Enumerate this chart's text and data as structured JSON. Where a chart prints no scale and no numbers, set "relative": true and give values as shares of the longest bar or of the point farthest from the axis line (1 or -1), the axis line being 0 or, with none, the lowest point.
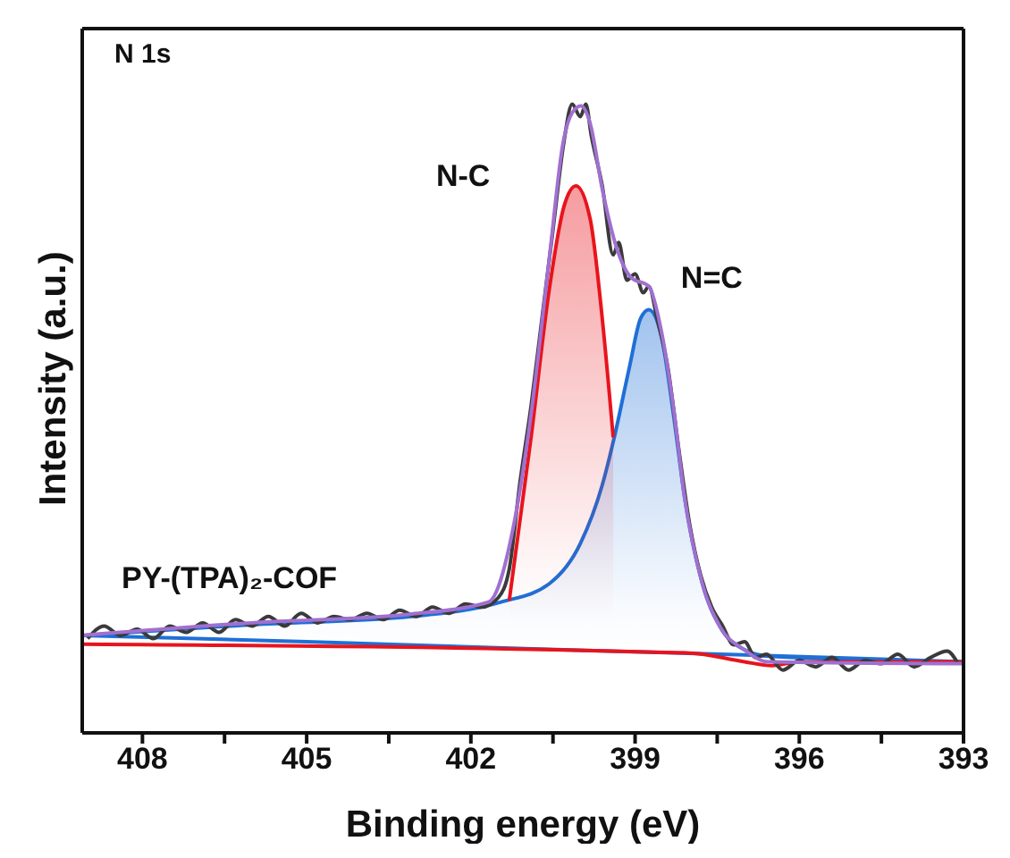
{
  "chart_data": {
    "type": "line",
    "relative": true,
    "xlabel": "Binding energy (eV)",
    "ylabel": "Intensity (a.u.)",
    "annotations": [
      "N 1s",
      "PY-(TPA)₂-COF"
    ],
    "xlim": [
      409.1,
      393
    ],
    "xticks": [
      408,
      {
        "value": 406.5,
        "label": null
      },
      405,
      {
        "value": 403.5,
        "label": null
      },
      402,
      {
        "value": 400.5,
        "label": null
      },
      399,
      {
        "value": 397.5,
        "label": null
      },
      396,
      {
        "value": 394.5,
        "label": null
      },
      393
    ],
    "tick_labels": "x",
    "marker": "none",
    "line_style": "solid",
    "series": [
      {
        "type": "area",
        "name": "N=C",
        "color": "#1f6fd6",
        "x": [
          409.1,
          406,
          403.08,
          401.45,
          400.57,
          400.0,
          399.6,
          399.38,
          399.1,
          398.9,
          398.75,
          398.52,
          398.3,
          398.1,
          397.77,
          397.45,
          397.0,
          396.57,
          393
        ],
        "values": [
          0.155,
          0.172,
          0.185,
          0.208,
          0.237,
          0.301,
          0.394,
          0.47,
          0.583,
          0.659,
          0.673,
          0.631,
          0.507,
          0.377,
          0.237,
          0.169,
          0.132,
          0.122,
          0.113
        ]
      },
      {
        "type": "area",
        "name": "N-C",
        "color": "#e8141c",
        "x": [
          401.3,
          400.9,
          400.57,
          400.3,
          400.08,
          399.82,
          399.6,
          399.4
        ],
        "values": [
          0.21,
          0.47,
          0.704,
          0.837,
          0.87,
          0.817,
          0.659,
          0.47
        ]
      },
      {
        "color": "#1f6fd6",
        "x": [
          409.1,
          405,
          401,
          397,
          393
        ],
        "values": [
          0.155,
          0.145,
          0.134,
          0.124,
          0.113
        ]
      },
      {
        "color": "#e8141c",
        "x": [
          409.1,
          398,
          397,
          396.5,
          396,
          393
        ],
        "values": [
          0.141,
          0.127,
          0.113,
          0.107,
          0.113,
          0.113
        ]
      },
      {
        "color": "#3a3a3a",
        "x": [
          409.0,
          408.7,
          408.4,
          408.1,
          407.8,
          407.5,
          407.2,
          406.9,
          406.6,
          406.3,
          406.0,
          405.7,
          405.4,
          405.1,
          404.8,
          404.5,
          404.2,
          403.9,
          403.6,
          403.3,
          403.0,
          402.7,
          402.4,
          402.1,
          401.8,
          401.5,
          401.3,
          401.1,
          400.9,
          400.7,
          400.5,
          400.3,
          400.15,
          400.0,
          399.9,
          399.8,
          399.6,
          399.4,
          399.3,
          399.15,
          399.0,
          398.85,
          398.75,
          398.6,
          398.4,
          398.2,
          398.0,
          397.8,
          397.6,
          397.4,
          397.2,
          397.0,
          396.8,
          396.6,
          396.3,
          396.0,
          395.7,
          395.4,
          395.1,
          394.8,
          394.5,
          394.2,
          393.9,
          393.6,
          393.3,
          393.1
        ],
        "values": [
          0.15,
          0.17,
          0.155,
          0.165,
          0.15,
          0.17,
          0.16,
          0.175,
          0.16,
          0.18,
          0.17,
          0.185,
          0.17,
          0.19,
          0.175,
          0.185,
          0.18,
          0.19,
          0.18,
          0.195,
          0.185,
          0.2,
          0.19,
          0.205,
          0.2,
          0.215,
          0.26,
          0.4,
          0.52,
          0.66,
          0.8,
          0.94,
          1.0,
          0.98,
          1.0,
          0.95,
          0.87,
          0.76,
          0.78,
          0.72,
          0.73,
          0.7,
          0.71,
          0.66,
          0.58,
          0.45,
          0.33,
          0.25,
          0.2,
          0.17,
          0.14,
          0.145,
          0.12,
          0.125,
          0.1,
          0.115,
          0.105,
          0.12,
          0.1,
          0.115,
          0.11,
          0.125,
          0.105,
          0.12,
          0.13,
          0.11
        ]
      },
      {
        "color": "#a070d0",
        "x": [
          409.1,
          406.0,
          403.08,
          401.68,
          401.2,
          400.9,
          400.57,
          400.31,
          400.15,
          399.99,
          399.82,
          399.6,
          399.34,
          399.07,
          398.75,
          398.52,
          398.3,
          398.1,
          397.77,
          397.45,
          397.0,
          396.57,
          393
        ],
        "values": [
          0.155,
          0.175,
          0.189,
          0.208,
          0.338,
          0.507,
          0.752,
          0.941,
          0.986,
          0.997,
          0.969,
          0.865,
          0.772,
          0.724,
          0.71,
          0.639,
          0.518,
          0.377,
          0.237,
          0.169,
          0.132,
          0.113,
          0.11
        ]
      }
    ]
  }
}
